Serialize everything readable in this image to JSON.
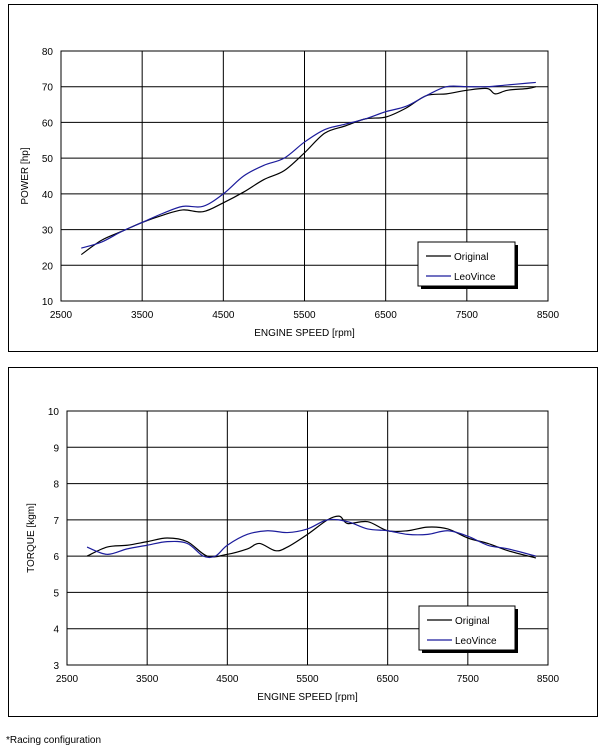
{
  "chart_data": [
    {
      "type": "line",
      "title": "",
      "xlabel": "ENGINE SPEED [rpm]",
      "ylabel": "POWER [hp]",
      "xlim": [
        2500,
        8500
      ],
      "ylim": [
        10,
        80
      ],
      "xticks": [
        2500,
        3500,
        4500,
        5500,
        6500,
        7500,
        8500
      ],
      "yticks": [
        10,
        20,
        30,
        40,
        50,
        60,
        70,
        80
      ],
      "grid": true,
      "legend_position": "bottom-right",
      "series": [
        {
          "name": "Original",
          "color": "#000000",
          "x": [
            2750,
            3000,
            3250,
            3500,
            3750,
            4000,
            4250,
            4500,
            4750,
            5000,
            5250,
            5500,
            5750,
            6000,
            6250,
            6500,
            6750,
            7000,
            7250,
            7500,
            7750,
            7850,
            8000,
            8250,
            8350
          ],
          "y": [
            23.0,
            27.0,
            29.5,
            32.0,
            34.0,
            35.5,
            35.0,
            37.5,
            40.5,
            44.0,
            46.5,
            51.5,
            57.0,
            59.0,
            61.0,
            61.5,
            64.0,
            67.5,
            68.0,
            69.0,
            69.5,
            68.0,
            69.0,
            69.5,
            70.0
          ]
        },
        {
          "name": "LeoVince",
          "color": "#1c1c9c",
          "x": [
            2750,
            3000,
            3250,
            3500,
            3750,
            4000,
            4250,
            4500,
            4750,
            5000,
            5250,
            5500,
            5750,
            6000,
            6250,
            6500,
            6750,
            7000,
            7250,
            7500,
            7750,
            8000,
            8250,
            8350
          ],
          "y": [
            24.8,
            26.5,
            29.5,
            32.0,
            34.5,
            36.5,
            36.5,
            40.0,
            45.0,
            48.0,
            50.0,
            54.5,
            58.0,
            59.5,
            61.0,
            63.0,
            64.5,
            67.5,
            70.0,
            70.0,
            70.0,
            70.5,
            71.0,
            71.2
          ]
        }
      ]
    },
    {
      "type": "line",
      "title": "",
      "xlabel": "ENGINE SPEED [rpm]",
      "ylabel": "TORQUE [kgm]",
      "xlim": [
        2500,
        8500
      ],
      "ylim": [
        3,
        10
      ],
      "xticks": [
        2500,
        3500,
        4500,
        5500,
        6500,
        7500,
        8500
      ],
      "yticks": [
        3,
        4,
        5,
        6,
        7,
        8,
        9,
        10
      ],
      "grid": true,
      "legend_position": "bottom-right",
      "series": [
        {
          "name": "Original",
          "color": "#000000",
          "x": [
            2750,
            3000,
            3250,
            3500,
            3750,
            4000,
            4250,
            4500,
            4750,
            4900,
            5100,
            5250,
            5500,
            5750,
            5900,
            6000,
            6250,
            6500,
            6750,
            7000,
            7250,
            7500,
            7750,
            8000,
            8350
          ],
          "y": [
            6.0,
            6.25,
            6.3,
            6.4,
            6.5,
            6.4,
            6.0,
            6.05,
            6.2,
            6.35,
            6.15,
            6.25,
            6.6,
            7.0,
            7.1,
            6.9,
            6.95,
            6.7,
            6.7,
            6.8,
            6.75,
            6.5,
            6.35,
            6.15,
            5.95
          ]
        },
        {
          "name": "LeoVince",
          "color": "#1c1c9c",
          "x": [
            2750,
            3000,
            3250,
            3500,
            3750,
            4000,
            4200,
            4350,
            4500,
            4750,
            5000,
            5250,
            5500,
            5750,
            6000,
            6250,
            6500,
            6750,
            7000,
            7250,
            7500,
            7750,
            8000,
            8350
          ],
          "y": [
            6.25,
            6.05,
            6.2,
            6.3,
            6.4,
            6.35,
            6.0,
            6.0,
            6.3,
            6.6,
            6.7,
            6.65,
            6.75,
            7.0,
            6.95,
            6.75,
            6.7,
            6.6,
            6.6,
            6.7,
            6.55,
            6.3,
            6.2,
            6.0
          ]
        }
      ]
    }
  ],
  "footnote": "*Racing configuration"
}
